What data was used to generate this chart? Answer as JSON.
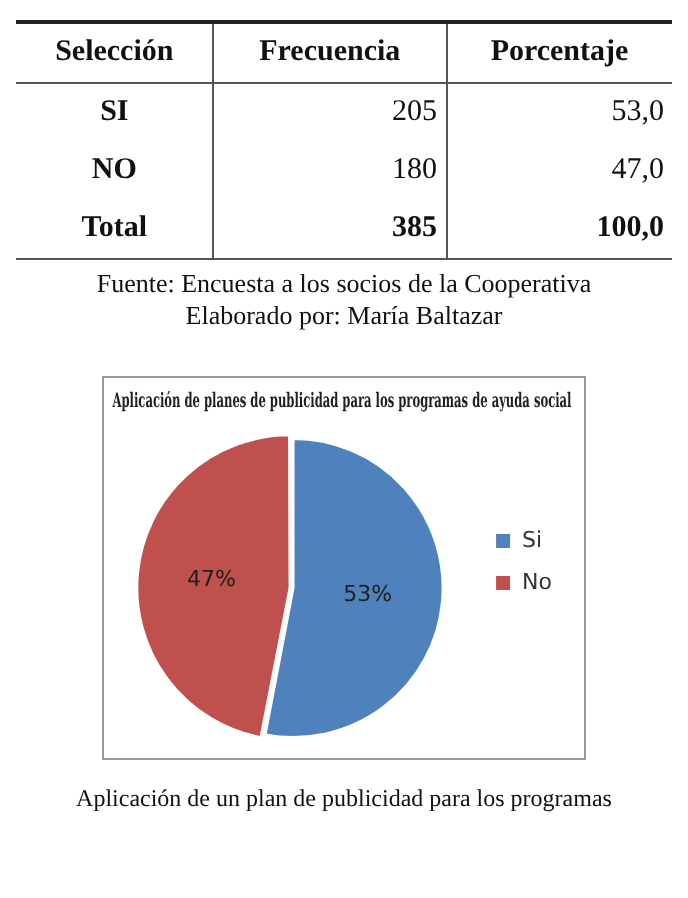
{
  "chart_data": {
    "type": "pie",
    "title": "Aplicación de planes de publicidad para los programas de ayuda social",
    "categories": [
      "Si",
      "No"
    ],
    "values": [
      53,
      47
    ],
    "colors": [
      "#4f81bd",
      "#c0504d"
    ],
    "value_labels": [
      "53%",
      "47%"
    ],
    "legend": "right",
    "annotations": [
      "Selección",
      "Frecuencia",
      "Porcentaje",
      "SI",
      "205",
      "53,0",
      "NO",
      "180",
      "47,0",
      "Total",
      "385",
      "100,0",
      "Fuente: Encuesta a los socios de la Cooperativa",
      "Elaborado por: María Baltazar",
      "Aplicación de un plan de publicidad para los programas"
    ]
  }
}
